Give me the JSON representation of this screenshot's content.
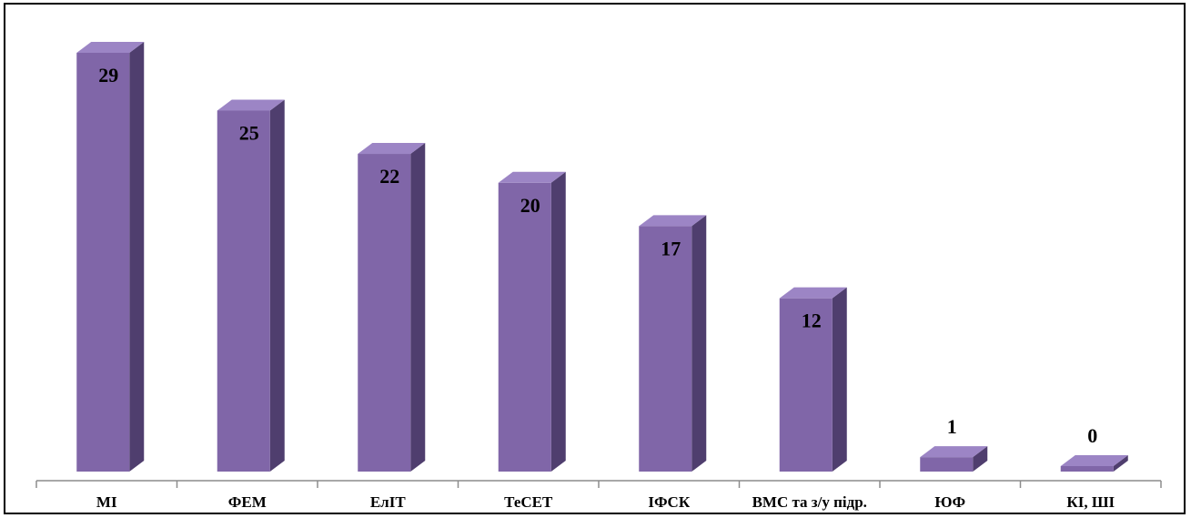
{
  "chart_data": {
    "type": "bar",
    "categories": [
      "МІ",
      "ФЕМ",
      "ЕлІТ",
      "ТеСЕТ",
      "ІФСК",
      "ВМС та з/у підр.",
      "ЮФ",
      "КІ, ШІ"
    ],
    "values": [
      29,
      25,
      22,
      20,
      17,
      12,
      1,
      0
    ],
    "data_labels": [
      "29",
      "25",
      "22",
      "20",
      "17",
      "12",
      "1",
      "0"
    ],
    "title": "",
    "xlabel": "",
    "ylabel": "",
    "ylim": [
      0,
      30
    ],
    "grid": false,
    "legend": "none",
    "bar_style": "3d",
    "colors": {
      "bar_front": "#8066A8",
      "bar_side": "#4F3E6E",
      "bar_top": "#9C85C5",
      "axis": "#8C8C8C"
    }
  }
}
